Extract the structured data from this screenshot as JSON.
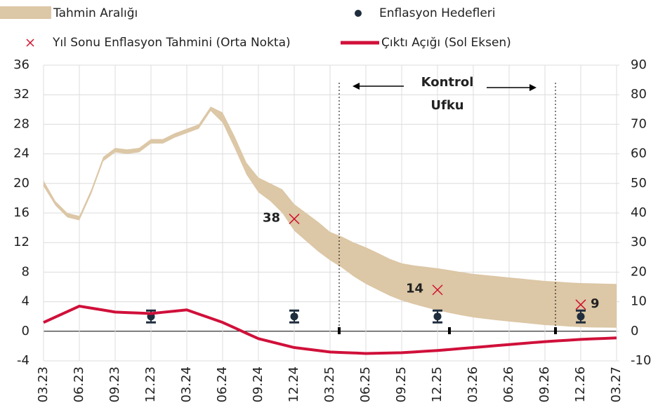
{
  "chart_data": {
    "type": "line",
    "categories": [
      "03.23",
      null,
      null,
      "06.23",
      null,
      null,
      "09.23",
      null,
      null,
      "12.23",
      null,
      null,
      "03.24",
      null,
      null,
      "06.24",
      null,
      null,
      "09.24",
      null,
      null,
      "12.24",
      null,
      null,
      "03.25",
      null,
      null,
      "06.25",
      null,
      null,
      "09.25",
      null,
      null,
      "12.25",
      null,
      null,
      "03.26",
      null,
      null,
      "06.26",
      null,
      null,
      "09.26",
      null,
      null,
      "12.26",
      null,
      null,
      "03.27"
    ],
    "ylim": [
      -4,
      36
    ],
    "yticks": [
      -4,
      0,
      4,
      8,
      12,
      16,
      20,
      24,
      28,
      32,
      36
    ],
    "y2lim": [
      -10,
      90
    ],
    "y2ticks": [
      -10,
      0,
      10,
      20,
      30,
      40,
      50,
      60,
      70,
      80,
      90
    ],
    "grid": true,
    "annotation": [
      "Kontrol",
      "Ufku"
    ],
    "band": {
      "name": "Tahmin Aralığı",
      "color": "#dcc7a6",
      "axis": "y2",
      "upper": [
        51,
        44,
        40,
        39,
        48,
        59,
        62,
        61.5,
        62,
        65,
        65,
        67,
        68.5,
        70,
        76,
        74,
        66,
        57,
        52,
        50,
        48,
        43,
        40,
        37,
        33.6,
        32,
        30,
        28.4,
        26.5,
        24.5,
        23,
        22.3,
        21.8,
        21.3,
        20.7,
        20,
        19.4,
        19,
        18.6,
        18.2,
        17.8,
        17.4,
        17,
        16.8,
        16.5,
        16.3,
        16.2,
        16.1,
        16
      ],
      "lower": [
        49,
        42.5,
        38.5,
        37.5,
        46.5,
        57.5,
        60.5,
        60,
        60.5,
        63.5,
        63.5,
        65.5,
        67,
        68.5,
        74.5,
        70.5,
        62,
        53,
        47,
        44,
        40,
        34,
        30.5,
        27,
        24,
        21.5,
        18.5,
        16,
        14,
        12,
        10.4,
        9.2,
        8.1,
        7.1,
        6.2,
        5.4,
        4.7,
        4.2,
        3.7,
        3.3,
        2.9,
        2.5,
        2.1,
        1.9,
        1.6,
        1.4,
        1.3,
        1.25,
        1.2
      ]
    },
    "series": [
      {
        "name": "Enflasyon Hedefleri",
        "kind": "dot",
        "color": "#1f2d3d",
        "axis": "y2",
        "values": [
          null,
          null,
          null,
          null,
          null,
          null,
          null,
          null,
          null,
          5,
          null,
          null,
          null,
          null,
          null,
          null,
          null,
          null,
          null,
          null,
          null,
          5,
          null,
          null,
          null,
          null,
          null,
          null,
          null,
          null,
          null,
          null,
          null,
          5,
          null,
          null,
          null,
          null,
          null,
          null,
          null,
          null,
          null,
          null,
          null,
          5,
          null,
          null,
          null
        ],
        "errors": [
          null,
          null,
          null,
          null,
          null,
          null,
          null,
          null,
          null,
          2,
          null,
          null,
          null,
          null,
          null,
          null,
          null,
          null,
          null,
          null,
          null,
          2,
          null,
          null,
          null,
          null,
          null,
          null,
          null,
          null,
          null,
          null,
          null,
          2,
          null,
          null,
          null,
          null,
          null,
          null,
          null,
          null,
          null,
          null,
          null,
          2,
          null,
          null,
          null
        ]
      },
      {
        "name": "Yıl Sonu Enflasyon Tahmini (Orta Nokta)",
        "kind": "cross",
        "color": "#d2102e",
        "axis": "y2",
        "values": [
          null,
          null,
          null,
          null,
          null,
          null,
          null,
          null,
          null,
          null,
          null,
          null,
          null,
          null,
          null,
          null,
          null,
          null,
          null,
          null,
          null,
          38,
          null,
          null,
          null,
          null,
          null,
          null,
          null,
          null,
          null,
          null,
          null,
          14,
          null,
          null,
          null,
          null,
          null,
          null,
          null,
          null,
          null,
          null,
          null,
          9,
          null,
          null,
          null
        ],
        "value_labels": [
          null,
          null,
          null,
          null,
          null,
          null,
          null,
          null,
          null,
          null,
          null,
          null,
          null,
          null,
          null,
          null,
          null,
          null,
          null,
          null,
          null,
          "38",
          null,
          null,
          null,
          null,
          null,
          null,
          null,
          null,
          null,
          null,
          null,
          "14",
          null,
          null,
          null,
          null,
          null,
          null,
          null,
          null,
          null,
          null,
          null,
          "9",
          null,
          null,
          null
        ]
      },
      {
        "name": "Çıktı Açığı (Sol Eksen)",
        "kind": "line",
        "color": "#d0103a",
        "values": [
          1.2,
          1.93,
          2.67,
          3.4,
          3.13,
          2.87,
          2.6,
          2.53,
          2.47,
          2.4,
          2.57,
          2.73,
          2.9,
          2.33,
          1.77,
          1.2,
          0.47,
          -0.27,
          -1.0,
          -1.4,
          -1.8,
          -2.2,
          -2.4,
          -2.6,
          -2.8,
          -2.87,
          -2.93,
          -3.0,
          -2.97,
          -2.93,
          -2.9,
          -2.8,
          -2.7,
          -2.6,
          -2.47,
          -2.33,
          -2.2,
          -2.07,
          -1.93,
          -1.8,
          -1.67,
          -1.53,
          -1.4,
          -1.3,
          -1.2,
          -1.1,
          -1.03,
          -0.97,
          -0.9
        ]
      }
    ]
  }
}
